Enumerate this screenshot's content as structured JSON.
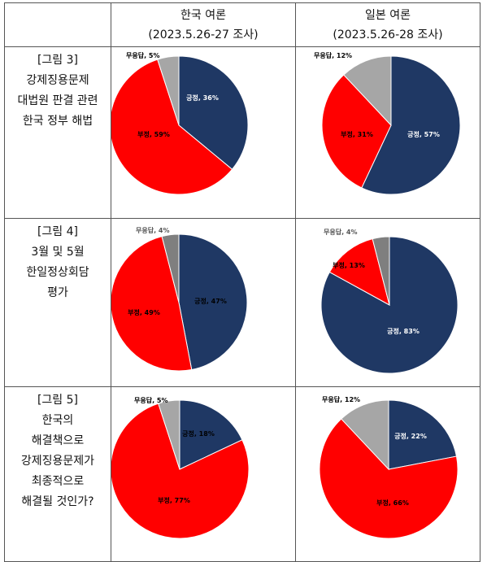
{
  "header": {
    "korea_title": "한국 여론",
    "korea_period": "(2023.5.26-27 조사)",
    "japan_title": "일본 여론",
    "japan_period": "(2023.5.26-28 조사)"
  },
  "rows": [
    {
      "label_lines": [
        "[그림 3]",
        "강제징용문제",
        "대법원 판결 관련",
        "한국 정부 해법"
      ]
    },
    {
      "label_lines": [
        "[그림 4]",
        "3월 및 5월",
        "한일정상회담",
        "평가"
      ]
    },
    {
      "label_lines": [
        "[그림 5]",
        "한국의",
        "해결책으로",
        "강제징용문제가",
        "최종적으로",
        "해결될 것인가?"
      ]
    }
  ],
  "colors": {
    "positive": "#1f3864",
    "negative": "#ff0000",
    "no_answer": "#a6a6a6",
    "no_answer_dark": "#7f7f7f"
  },
  "chart_data": [
    {
      "type": "pie",
      "figure": "[그림 3]",
      "panel": "한국 여론",
      "series": [
        {
          "name": "긍정",
          "value": 36,
          "label": "긍정, 36%"
        },
        {
          "name": "부정",
          "value": 59,
          "label": "부정, 59%"
        },
        {
          "name": "무응답",
          "value": 5,
          "label": "무응답, 5%"
        }
      ]
    },
    {
      "type": "pie",
      "figure": "[그림 3]",
      "panel": "일본 여론",
      "series": [
        {
          "name": "긍정",
          "value": 57,
          "label": "긍정, 57%"
        },
        {
          "name": "부정",
          "value": 31,
          "label": "부정, 31%"
        },
        {
          "name": "무응답",
          "value": 12,
          "label": "무응답, 12%"
        }
      ]
    },
    {
      "type": "pie",
      "figure": "[그림 4]",
      "panel": "한국 여론",
      "series": [
        {
          "name": "긍정",
          "value": 47,
          "label": "긍정, 47%"
        },
        {
          "name": "부정",
          "value": 49,
          "label": "부정, 49%"
        },
        {
          "name": "무응답",
          "value": 4,
          "label": "무응답, 4%"
        }
      ]
    },
    {
      "type": "pie",
      "figure": "[그림 4]",
      "panel": "일본 여론",
      "series": [
        {
          "name": "긍정",
          "value": 83,
          "label": "긍정, 83%"
        },
        {
          "name": "부정",
          "value": 13,
          "label": "부정, 13%"
        },
        {
          "name": "무응답",
          "value": 4,
          "label": "무응답, 4%"
        }
      ]
    },
    {
      "type": "pie",
      "figure": "[그림 5]",
      "panel": "한국 여론",
      "series": [
        {
          "name": "긍정",
          "value": 18,
          "label": "긍정, 18%"
        },
        {
          "name": "부정",
          "value": 77,
          "label": "부정, 77%"
        },
        {
          "name": "무응답",
          "value": 5,
          "label": "무응답, 5%"
        }
      ]
    },
    {
      "type": "pie",
      "figure": "[그림 5]",
      "panel": "일본 여론",
      "series": [
        {
          "name": "긍정",
          "value": 22,
          "label": "긍정, 22%"
        },
        {
          "name": "부정",
          "value": 66,
          "label": "부정, 66%"
        },
        {
          "name": "무응답",
          "value": 12,
          "label": "무응답, 12%"
        }
      ]
    }
  ]
}
